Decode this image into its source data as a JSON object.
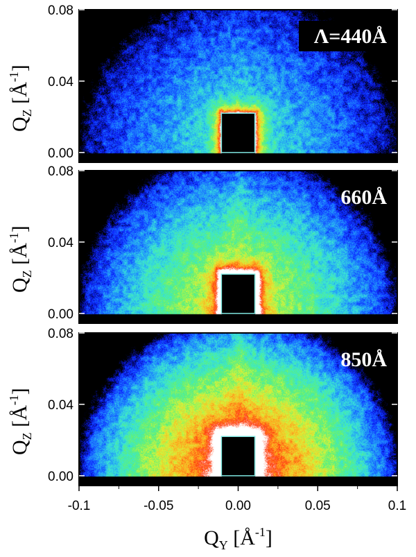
{
  "chart_data": {
    "type": "heatmap",
    "xlabel": {
      "base": "Q",
      "sub": "Y",
      "unit_open": " [Å",
      "unit_sup": "-1",
      "unit_close": "]"
    },
    "ylabel": {
      "base": "Q",
      "sub": "Z",
      "unit_open": " [Å",
      "unit_sup": "-1",
      "unit_close": "]"
    },
    "xlim": [
      -0.1,
      0.1
    ],
    "x_ticks": [
      -0.1,
      -0.05,
      0.0,
      0.05,
      0.1
    ],
    "x_tick_labels": [
      "-0.1",
      "-0.05",
      "0.00",
      "0.05",
      "0.1"
    ],
    "ylim": [
      -0.0055,
      0.08
    ],
    "y_ticks": [
      0.0,
      0.04,
      0.08
    ],
    "y_tick_labels": [
      "0.00",
      "0.04",
      "0.08"
    ],
    "colormap": [
      "#000000",
      "#0b1cff",
      "#1f8cff",
      "#39e6d8",
      "#5bf07a",
      "#d7f53a",
      "#ffb020",
      "#ff3a10",
      "#ffffff"
    ],
    "beamstop": {
      "qy_range": [
        -0.0105,
        0.0105
      ],
      "qz_top": 0.022
    },
    "panels": [
      {
        "label": "Λ=440Å",
        "label_has_box": true,
        "intensity": 0.36
      },
      {
        "label": "660Å",
        "label_has_box": false,
        "intensity": 0.6
      },
      {
        "label": "850Å",
        "label_has_box": false,
        "intensity": 0.84
      }
    ]
  }
}
